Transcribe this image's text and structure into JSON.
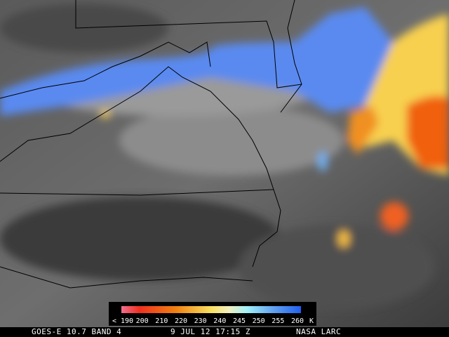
{
  "legend": {
    "labels": [
      "< 190",
      "200",
      "210",
      "220",
      "230",
      "240",
      "245",
      "250",
      "255",
      "260"
    ],
    "unit": "K"
  },
  "footer": {
    "satellite": "GOES-E 10.7 BAND 4",
    "timestamp": "9 JUL 12 17:15 Z",
    "credit": "NASA LARC"
  }
}
